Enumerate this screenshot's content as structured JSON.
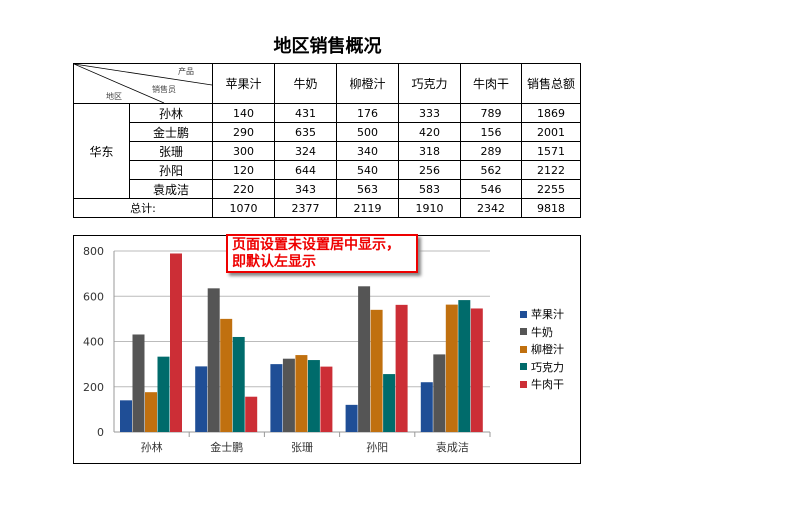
{
  "title": "地区销售概况",
  "corner": {
    "product": "产品",
    "salesperson": "销售员",
    "region": "地区"
  },
  "columns": [
    "苹果汁",
    "牛奶",
    "柳橙汁",
    "巧克力",
    "牛肉干",
    "销售总额"
  ],
  "region": "华东",
  "rows": [
    {
      "name": "孙林",
      "values": [
        "140",
        "431",
        "176",
        "333",
        "789",
        "1869"
      ]
    },
    {
      "name": "金士鹏",
      "values": [
        "290",
        "635",
        "500",
        "420",
        "156",
        "2001"
      ]
    },
    {
      "name": "张珊",
      "values": [
        "300",
        "324",
        "340",
        "318",
        "289",
        "1571"
      ]
    },
    {
      "name": "孙阳",
      "values": [
        "120",
        "644",
        "540",
        "256",
        "562",
        "2122"
      ]
    },
    {
      "name": "袁成洁",
      "values": [
        "220",
        "343",
        "563",
        "583",
        "546",
        "2255"
      ]
    }
  ],
  "total": {
    "label": "总计:",
    "values": [
      "1070",
      "2377",
      "2119",
      "1910",
      "2342",
      "9818"
    ]
  },
  "callout": "页面设置未设置居中显示，即默认左显示",
  "chart_data": {
    "type": "bar",
    "categories": [
      "孙林",
      "金士鹏",
      "张珊",
      "孙阳",
      "袁成洁"
    ],
    "series": [
      {
        "name": "苹果汁",
        "color": "#1f4e96",
        "values": [
          140,
          290,
          300,
          120,
          220
        ]
      },
      {
        "name": "牛奶",
        "color": "#555555",
        "values": [
          431,
          635,
          324,
          644,
          343
        ]
      },
      {
        "name": "柳橙汁",
        "color": "#c0700f",
        "values": [
          176,
          500,
          340,
          540,
          563
        ]
      },
      {
        "name": "巧克力",
        "color": "#006b6b",
        "values": [
          333,
          420,
          318,
          256,
          583
        ]
      },
      {
        "name": "牛肉干",
        "color": "#cc2e36",
        "values": [
          789,
          156,
          289,
          562,
          546
        ]
      }
    ],
    "yticks": [
      0,
      200,
      400,
      600,
      800
    ],
    "ylim": [
      0,
      800
    ],
    "grid": true,
    "legend": "right"
  }
}
